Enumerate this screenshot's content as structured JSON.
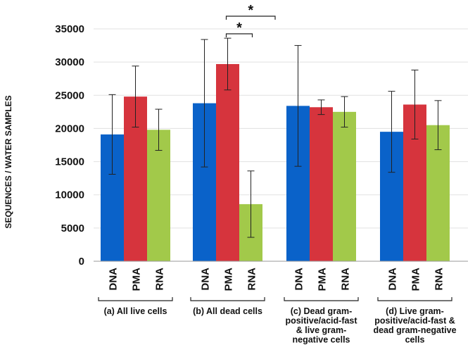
{
  "chart_data": {
    "type": "bar",
    "title": "",
    "xlabel": "",
    "ylabel": "SEQUENCES / WATER SAMPLES",
    "ylim": [
      0,
      35000
    ],
    "yticks": [
      0,
      5000,
      10000,
      15000,
      20000,
      25000,
      30000,
      35000
    ],
    "ytick_labels": [
      "0",
      "5000",
      "10000",
      "15000",
      "20000",
      "25000",
      "30000",
      "35000"
    ],
    "grid": true,
    "categories": [
      "DNA",
      "PMA",
      "RNA"
    ],
    "groups": [
      {
        "name_lines": [
          "(a) All live cells"
        ],
        "values": [
          19100,
          24800,
          19800
        ],
        "errors": [
          6000,
          4600,
          3100
        ]
      },
      {
        "name_lines": [
          "(b) All dead cells"
        ],
        "values": [
          23800,
          29700,
          8600
        ],
        "errors": [
          9600,
          3900,
          5000
        ]
      },
      {
        "name_lines": [
          "(c) Dead gram-",
          "positive/acid-fast",
          "& live gram-",
          "negative cells"
        ],
        "values": [
          23400,
          23200,
          22500
        ],
        "errors": [
          9100,
          1100,
          2300
        ]
      },
      {
        "name_lines": [
          "(d) Live gram-",
          "positive/acid-fast &",
          "dead gram-negative",
          "cells"
        ],
        "values": [
          19500,
          23600,
          20500
        ],
        "errors": [
          6100,
          5200,
          3700
        ]
      }
    ],
    "series_colors": [
      "#0a62c9",
      "#d6343d",
      "#a2c94a"
    ],
    "significance": [
      {
        "label": "*",
        "group": 1,
        "from": 1,
        "to": 2
      },
      {
        "label": "*",
        "group": 1,
        "from": 1,
        "to": 3
      }
    ]
  }
}
